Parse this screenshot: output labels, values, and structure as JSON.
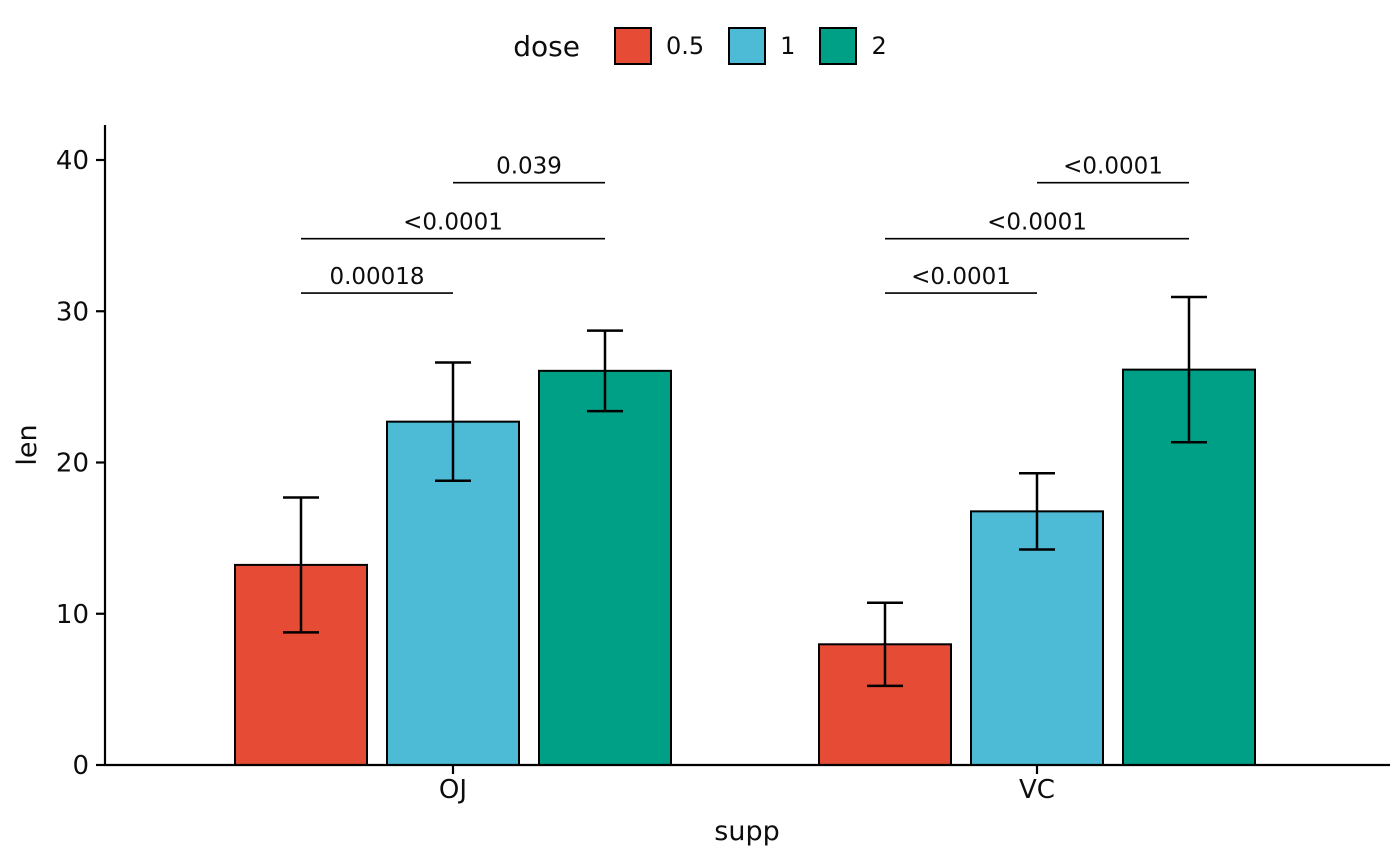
{
  "chart_data": {
    "type": "bar",
    "title": "",
    "xlabel": "supp",
    "ylabel": "len",
    "ylim": [
      0,
      42.3
    ],
    "yticks": [
      0,
      10,
      20,
      30,
      40
    ],
    "grid": false,
    "legend": {
      "title": "dose",
      "position": "top",
      "entries": [
        {
          "label": "0.5",
          "color": "#E64B35"
        },
        {
          "label": "1",
          "color": "#4DBBD5"
        },
        {
          "label": "2",
          "color": "#00A087"
        }
      ]
    },
    "categories": [
      "OJ",
      "VC"
    ],
    "bars": [
      {
        "group": "OJ",
        "dose": "0.5",
        "value": 13.23,
        "err_low": 8.77,
        "err_high": 17.69
      },
      {
        "group": "OJ",
        "dose": "1",
        "value": 22.7,
        "err_low": 18.79,
        "err_high": 26.61
      },
      {
        "group": "OJ",
        "dose": "2",
        "value": 26.06,
        "err_low": 23.4,
        "err_high": 28.72
      },
      {
        "group": "VC",
        "dose": "0.5",
        "value": 7.98,
        "err_low": 5.23,
        "err_high": 10.73
      },
      {
        "group": "VC",
        "dose": "1",
        "value": 16.77,
        "err_low": 14.25,
        "err_high": 19.29
      },
      {
        "group": "VC",
        "dose": "2",
        "value": 26.14,
        "err_low": 21.34,
        "err_high": 30.94
      }
    ],
    "comparisons": [
      {
        "group": "OJ",
        "from": "0.5",
        "to": "1",
        "y": 31.2,
        "label": "0.00018"
      },
      {
        "group": "OJ",
        "from": "0.5",
        "to": "2",
        "y": 34.8,
        "label": "<0.0001"
      },
      {
        "group": "OJ",
        "from": "1",
        "to": "2",
        "y": 38.5,
        "label": "0.039"
      },
      {
        "group": "VC",
        "from": "0.5",
        "to": "1",
        "y": 31.2,
        "label": "<0.0001"
      },
      {
        "group": "VC",
        "from": "0.5",
        "to": "2",
        "y": 34.8,
        "label": "<0.0001"
      },
      {
        "group": "VC",
        "from": "1",
        "to": "2",
        "y": 38.5,
        "label": "<0.0001"
      }
    ]
  }
}
